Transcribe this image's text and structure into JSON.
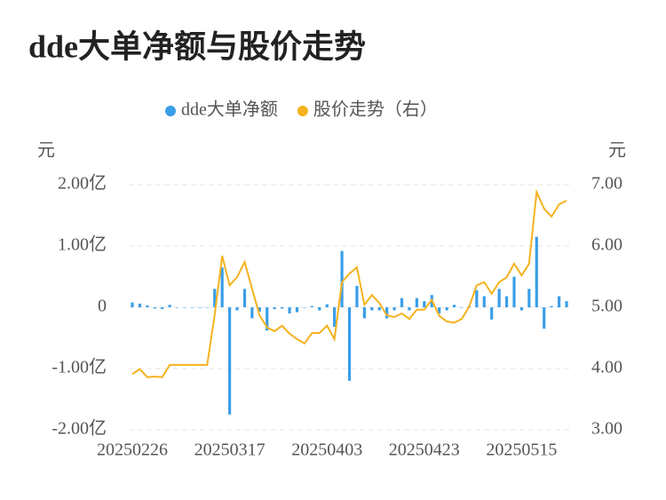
{
  "chart_data": {
    "type": "bar-line",
    "title": "dde大单净额与股价走势",
    "y_unit": "元",
    "y2_unit": "元",
    "categories": [
      "20250226",
      null,
      null,
      null,
      null,
      null,
      null,
      null,
      null,
      null,
      null,
      null,
      null,
      "20250317",
      null,
      null,
      null,
      null,
      null,
      null,
      null,
      null,
      null,
      null,
      null,
      null,
      "20250403",
      null,
      null,
      null,
      null,
      null,
      null,
      null,
      null,
      null,
      null,
      null,
      null,
      "20250423",
      null,
      null,
      null,
      null,
      null,
      null,
      null,
      null,
      null,
      null,
      null,
      null,
      "20250515",
      null,
      null,
      null,
      null,
      null,
      null
    ],
    "series": [
      {
        "name": "dde大单净额",
        "type": "bar",
        "color": "#3a9ee8",
        "values": [
          0.08,
          0.06,
          0.03,
          -0.02,
          -0.03,
          0.04,
          0,
          0,
          0,
          0,
          0,
          0.3,
          0.65,
          -1.75,
          -0.05,
          0.3,
          -0.18,
          -0.07,
          -0.38,
          -0.03,
          -0.02,
          -0.1,
          -0.08,
          0,
          0.02,
          -0.05,
          0.05,
          -0.32,
          0.92,
          -1.2,
          0.35,
          -0.18,
          -0.05,
          -0.05,
          -0.18,
          -0.05,
          0.15,
          -0.05,
          0.15,
          0.1,
          0.2,
          -0.1,
          -0.05,
          0.04,
          0,
          0.02,
          0.28,
          0.18,
          -0.2,
          0.3,
          0.18,
          0.5,
          -0.05,
          0.3,
          1.15,
          -0.35,
          0.02,
          0.18,
          0.1
        ]
      },
      {
        "name": "股价走势（右）",
        "type": "line",
        "axis": "y2",
        "color": "#f5b21f",
        "values": [
          3.91,
          3.99,
          3.86,
          3.87,
          3.86,
          4.06,
          4.06,
          4.06,
          4.06,
          4.06,
          4.06,
          4.87,
          5.84,
          5.36,
          5.49,
          5.74,
          5.3,
          4.87,
          4.67,
          4.61,
          4.7,
          4.57,
          4.48,
          4.41,
          4.58,
          4.58,
          4.7,
          4.48,
          5.41,
          5.55,
          5.65,
          5.04,
          5.2,
          5.07,
          4.87,
          4.84,
          4.9,
          4.81,
          4.96,
          4.96,
          5.12,
          4.86,
          4.77,
          4.75,
          4.81,
          5.01,
          5.36,
          5.41,
          5.22,
          5.41,
          5.49,
          5.71,
          5.52,
          5.71,
          6.88,
          6.61,
          6.48,
          6.68,
          6.74
        ]
      }
    ],
    "ylim": [
      -2,
      2
    ],
    "yticks": [
      {
        "value": -2,
        "label": "-2.00亿"
      },
      {
        "value": -1,
        "label": "-1.00亿"
      },
      0,
      {
        "value": 1,
        "label": "1.00亿"
      },
      {
        "value": 2,
        "label": "2.00亿"
      }
    ],
    "y2lim": [
      3,
      7
    ],
    "y2ticks": [
      {
        "value": 3,
        "label": "3.00"
      },
      {
        "value": 4,
        "label": "4.00"
      },
      {
        "value": 5,
        "label": "5.00"
      },
      {
        "value": 6,
        "label": "6.00"
      },
      {
        "value": 7,
        "label": "7.00"
      }
    ],
    "grid": true
  }
}
